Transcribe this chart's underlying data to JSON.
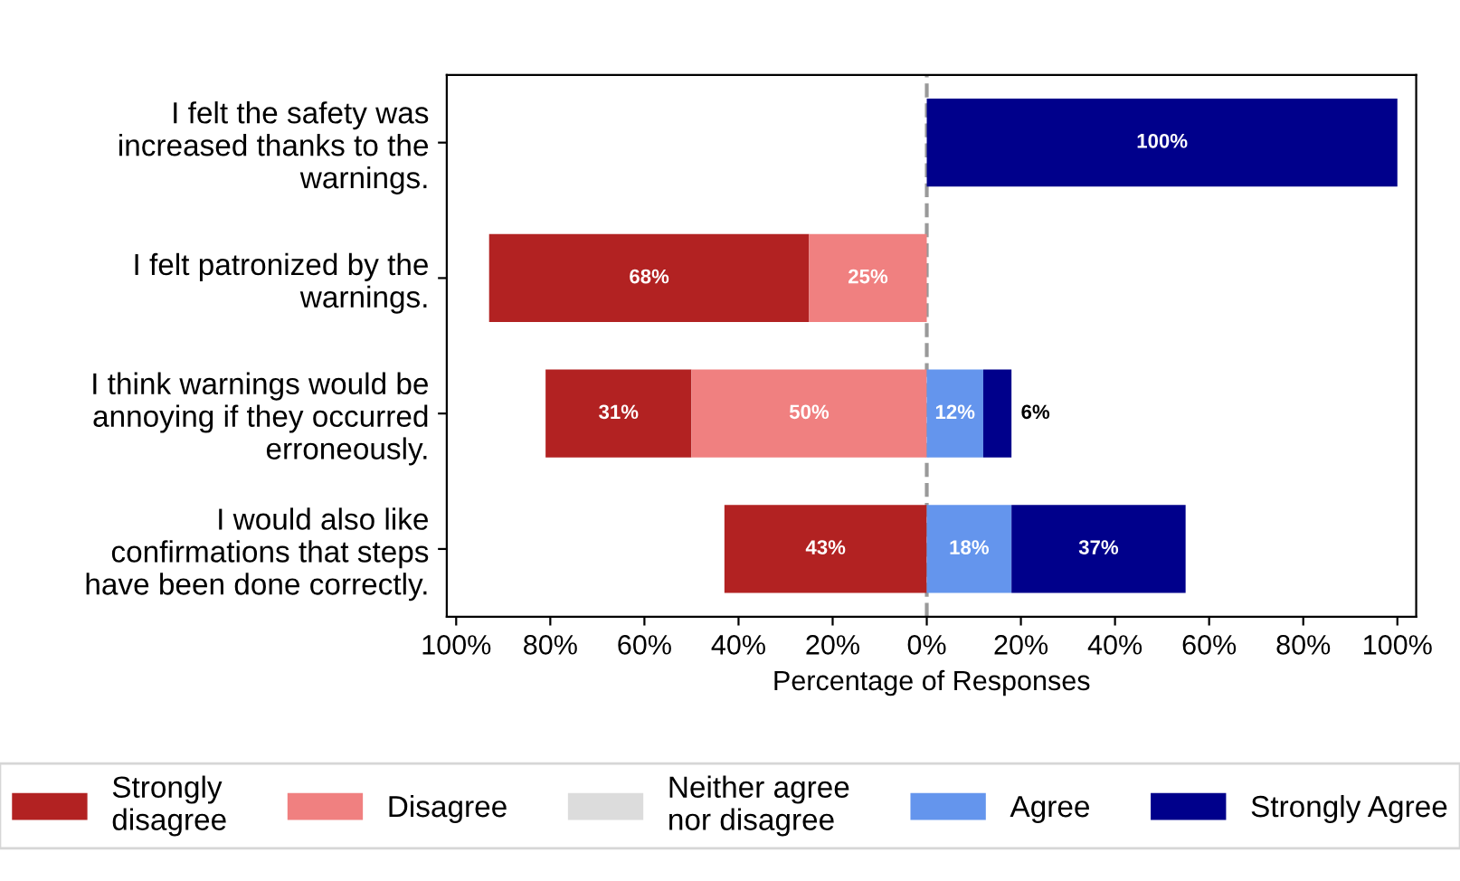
{
  "chart_data": {
    "type": "bar",
    "orientation": "horizontal",
    "xlabel": "Percentage of Responses",
    "categories": [
      "I felt the safety was\nincreased thanks to the\nwarnings.",
      "I felt patronized by the\nwarnings.",
      "I think warnings would be\nannoying if they occurred\nerroneously.",
      "I would also like\nconfirmations that steps\nhave been done correctly."
    ],
    "series": [
      {
        "name": "Strongly\ndisagree",
        "color": "#b22222",
        "values": [
          null,
          68,
          31,
          43
        ],
        "base": [
          null,
          -93,
          -81,
          -43
        ],
        "value_labels": [
          null,
          "68%",
          "31%",
          "43%"
        ]
      },
      {
        "name": "Disagree",
        "color": "#f08080",
        "values": [
          null,
          25,
          50,
          null
        ],
        "base": [
          null,
          -25,
          -50,
          null
        ],
        "value_labels": [
          null,
          "25%",
          "50%",
          null
        ]
      },
      {
        "name": "Neither agree\nnor disagree",
        "color": "#dcdcdc",
        "values": [
          null,
          null,
          null,
          null
        ],
        "base": [
          null,
          null,
          null,
          null
        ]
      },
      {
        "name": "Agree",
        "color": "#6495ed",
        "values": [
          null,
          null,
          12,
          18
        ],
        "base": [
          null,
          null,
          0,
          0
        ],
        "value_labels": [
          null,
          null,
          "12%",
          "18%"
        ]
      },
      {
        "name": "Strongly Agree",
        "color": "#00008b",
        "values": [
          100,
          null,
          6,
          37
        ],
        "base": [
          0,
          null,
          12,
          18
        ],
        "value_labels": [
          "100%",
          null,
          "6%",
          "37%"
        ]
      }
    ],
    "xlim": [
      -102,
      104
    ],
    "xticks": [
      {
        "value": -100,
        "label": "100%"
      },
      {
        "value": -80,
        "label": "80%"
      },
      {
        "value": -60,
        "label": "60%"
      },
      {
        "value": -40,
        "label": "40%"
      },
      {
        "value": -20,
        "label": "20%"
      },
      {
        "value": 0,
        "label": "0%"
      },
      {
        "value": 20,
        "label": "20%"
      },
      {
        "value": 40,
        "label": "40%"
      },
      {
        "value": 60,
        "label": "60%"
      },
      {
        "value": 80,
        "label": "80%"
      },
      {
        "value": 100,
        "label": "100%"
      }
    ],
    "ref_lines": [
      {
        "axis": "x",
        "value": 0,
        "label": null,
        "color": "#999999",
        "line_style": "dashed"
      }
    ],
    "legend": "bottom",
    "grid": false
  }
}
